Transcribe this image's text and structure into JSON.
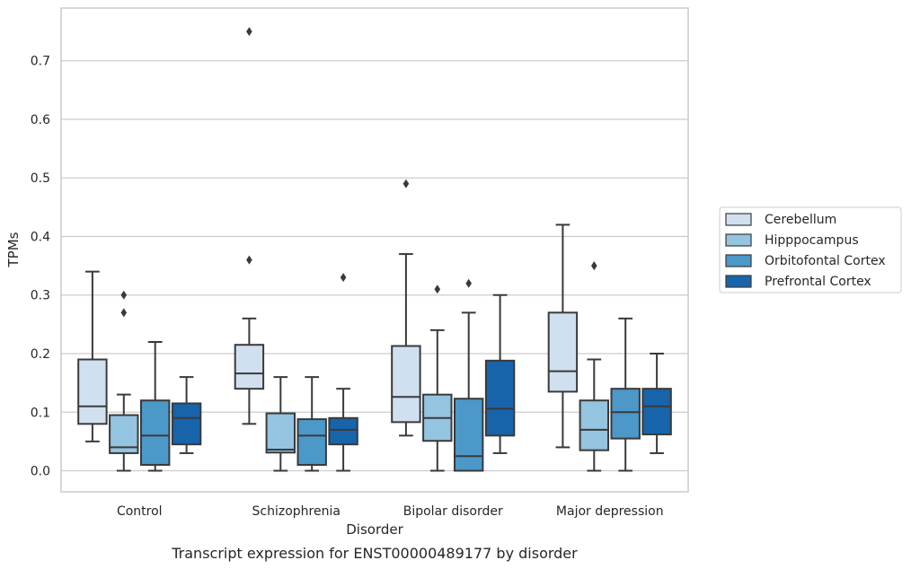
{
  "chart_data": {
    "type": "boxplot",
    "caption": "Transcript expression for ENST00000489177 by disorder",
    "xlabel": "Disorder",
    "ylabel": "TPMs",
    "ylim": [
      -0.036,
      0.79
    ],
    "yticks": [
      0.0,
      0.1,
      0.2,
      0.3,
      0.4,
      0.5,
      0.6,
      0.7
    ],
    "ytick_labels": [
      "0.0",
      "0.1",
      "0.2",
      "0.3",
      "0.4",
      "0.5",
      "0.6",
      "0.7"
    ],
    "grid": "horizontal",
    "legend_position": "outside-right",
    "categories": [
      "Control",
      "Schizophrenia",
      "Bipolar disorder",
      "Major depression"
    ],
    "series": [
      {
        "name": "Cerebellum",
        "color": "#d1e0f0",
        "boxes": [
          {
            "min": 0.05,
            "q1": 0.08,
            "median": 0.11,
            "q3": 0.19,
            "max": 0.34,
            "outliers": []
          },
          {
            "min": 0.08,
            "q1": 0.14,
            "median": 0.166,
            "q3": 0.215,
            "max": 0.26,
            "outliers": [
              0.36,
              0.75
            ]
          },
          {
            "min": 0.06,
            "q1": 0.083,
            "median": 0.126,
            "q3": 0.213,
            "max": 0.37,
            "outliers": [
              0.49
            ]
          },
          {
            "min": 0.04,
            "q1": 0.135,
            "median": 0.17,
            "q3": 0.27,
            "max": 0.42,
            "outliers": []
          }
        ]
      },
      {
        "name": "Hipppocampus",
        "color": "#94c4df",
        "boxes": [
          {
            "min": 0.0,
            "q1": 0.03,
            "median": 0.04,
            "q3": 0.095,
            "max": 0.13,
            "outliers": [
              0.27,
              0.3
            ]
          },
          {
            "min": 0.0,
            "q1": 0.031,
            "median": 0.036,
            "q3": 0.098,
            "max": 0.16,
            "outliers": []
          },
          {
            "min": 0.0,
            "q1": 0.051,
            "median": 0.09,
            "q3": 0.13,
            "max": 0.24,
            "outliers": [
              0.31
            ]
          },
          {
            "min": 0.0,
            "q1": 0.035,
            "median": 0.07,
            "q3": 0.12,
            "max": 0.19,
            "outliers": [
              0.35
            ]
          }
        ]
      },
      {
        "name": "Orbitofontal Cortex",
        "color": "#4b98c9",
        "boxes": [
          {
            "min": 0.0,
            "q1": 0.01,
            "median": 0.06,
            "q3": 0.12,
            "max": 0.22,
            "outliers": []
          },
          {
            "min": 0.0,
            "q1": 0.01,
            "median": 0.06,
            "q3": 0.088,
            "max": 0.16,
            "outliers": []
          },
          {
            "min": 0.0,
            "q1": 0.0,
            "median": 0.025,
            "q3": 0.123,
            "max": 0.27,
            "outliers": [
              0.32
            ]
          },
          {
            "min": 0.0,
            "q1": 0.055,
            "median": 0.1,
            "q3": 0.14,
            "max": 0.26,
            "outliers": []
          }
        ]
      },
      {
        "name": "Prefrontal Cortex",
        "color": "#1764ab",
        "boxes": [
          {
            "min": 0.03,
            "q1": 0.045,
            "median": 0.09,
            "q3": 0.115,
            "max": 0.16,
            "outliers": []
          },
          {
            "min": 0.0,
            "q1": 0.045,
            "median": 0.07,
            "q3": 0.09,
            "max": 0.14,
            "outliers": [
              0.33
            ]
          },
          {
            "min": 0.03,
            "q1": 0.06,
            "median": 0.106,
            "q3": 0.188,
            "max": 0.3,
            "outliers": []
          },
          {
            "min": 0.03,
            "q1": 0.062,
            "median": 0.11,
            "q3": 0.14,
            "max": 0.2,
            "outliers": []
          }
        ]
      }
    ]
  }
}
